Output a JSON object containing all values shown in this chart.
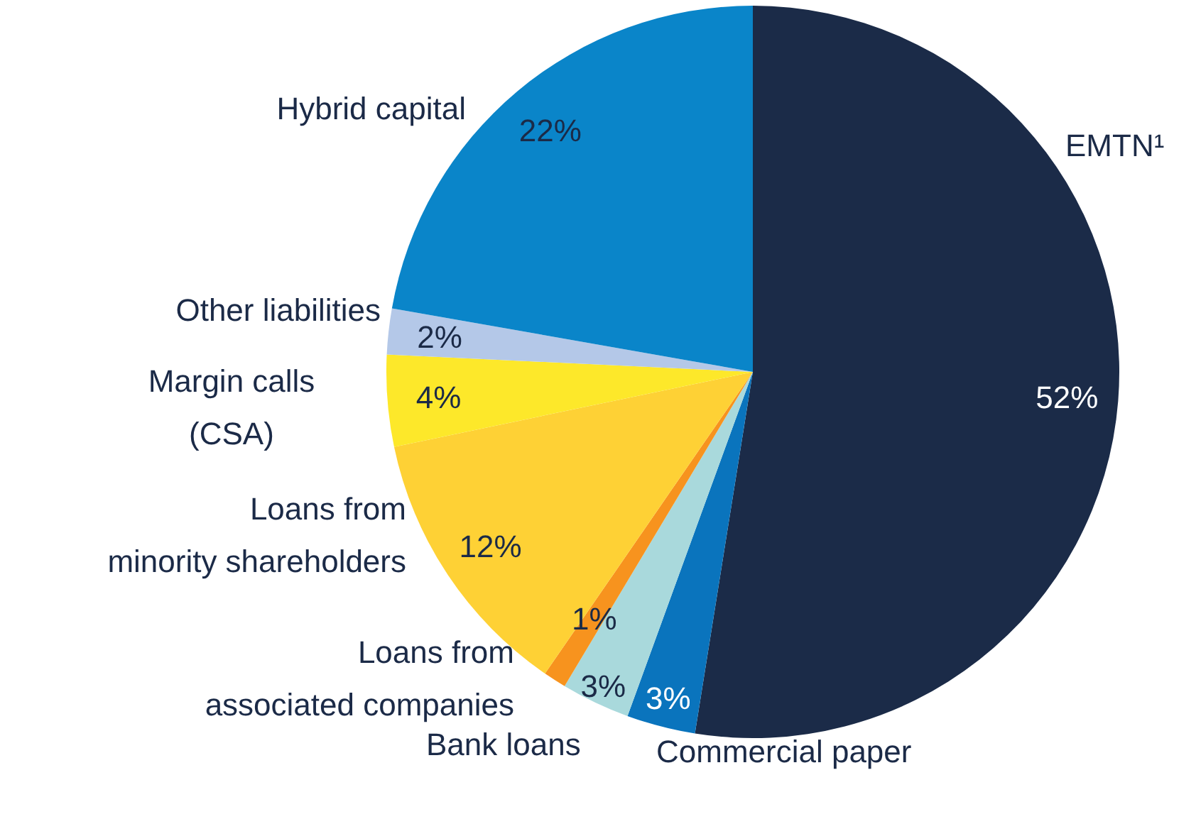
{
  "chart_data": {
    "type": "pie",
    "categories": [
      "EMTN¹",
      "Commercial paper",
      "Bank loans",
      "Loans from\nassociated companies",
      "Loans from\nminority shareholders",
      "Margin calls\n(CSA)",
      "Other liabilities",
      "Hybrid capital"
    ],
    "values": [
      52,
      3,
      3,
      1,
      12,
      4,
      2,
      22
    ],
    "value_labels": [
      "52%",
      "3%",
      "3%",
      "1%",
      "12%",
      "4%",
      "2%",
      "22%"
    ],
    "colors": [
      "#1b2b48",
      "#0a74bd",
      "#a9d9dc",
      "#f7931e",
      "#fed135",
      "#fde82a",
      "#b4c8e8",
      "#0a85c9"
    ]
  }
}
